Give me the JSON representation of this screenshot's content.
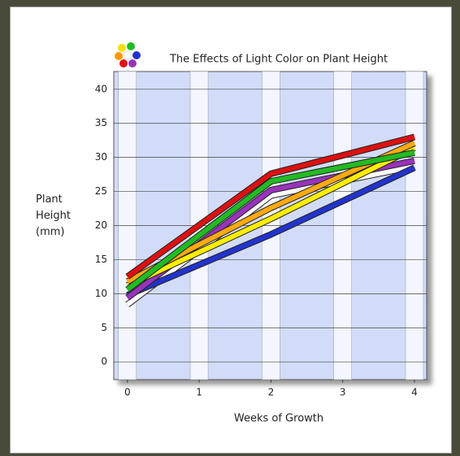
{
  "chart_data": {
    "type": "line",
    "title": "The Effects of Light Color on Plant Height",
    "x_label": "Weeks of Growth",
    "y_label": "Plant Height (mm)",
    "x": [
      0,
      2,
      4
    ],
    "xlim": [
      -0.19,
      4.17
    ],
    "xticks": [
      0,
      1,
      2,
      3,
      4
    ],
    "ylim": [
      -2.6,
      42.6
    ],
    "yticks": [
      0,
      5,
      10,
      15,
      20,
      25,
      30,
      35,
      40
    ],
    "grid": true,
    "series": [
      {
        "color": "#ffffff",
        "values": [
          8.4,
          24.4,
          28.7
        ]
      },
      {
        "color": "#2233cc",
        "values": [
          9.8,
          18.7,
          28.5
        ]
      },
      {
        "color": "#9933bb",
        "values": [
          9.4,
          25.2,
          29.5
        ]
      },
      {
        "color": "#ffee00",
        "values": [
          11.2,
          21.0,
          31.4
        ]
      },
      {
        "color": "#ffaa11",
        "values": [
          11.8,
          22.6,
          32.1
        ]
      },
      {
        "color": "#22bb22",
        "values": [
          10.6,
          26.5,
          30.7
        ]
      },
      {
        "color": "#dd1111",
        "values": [
          12.5,
          27.6,
          33.0
        ]
      }
    ]
  }
}
